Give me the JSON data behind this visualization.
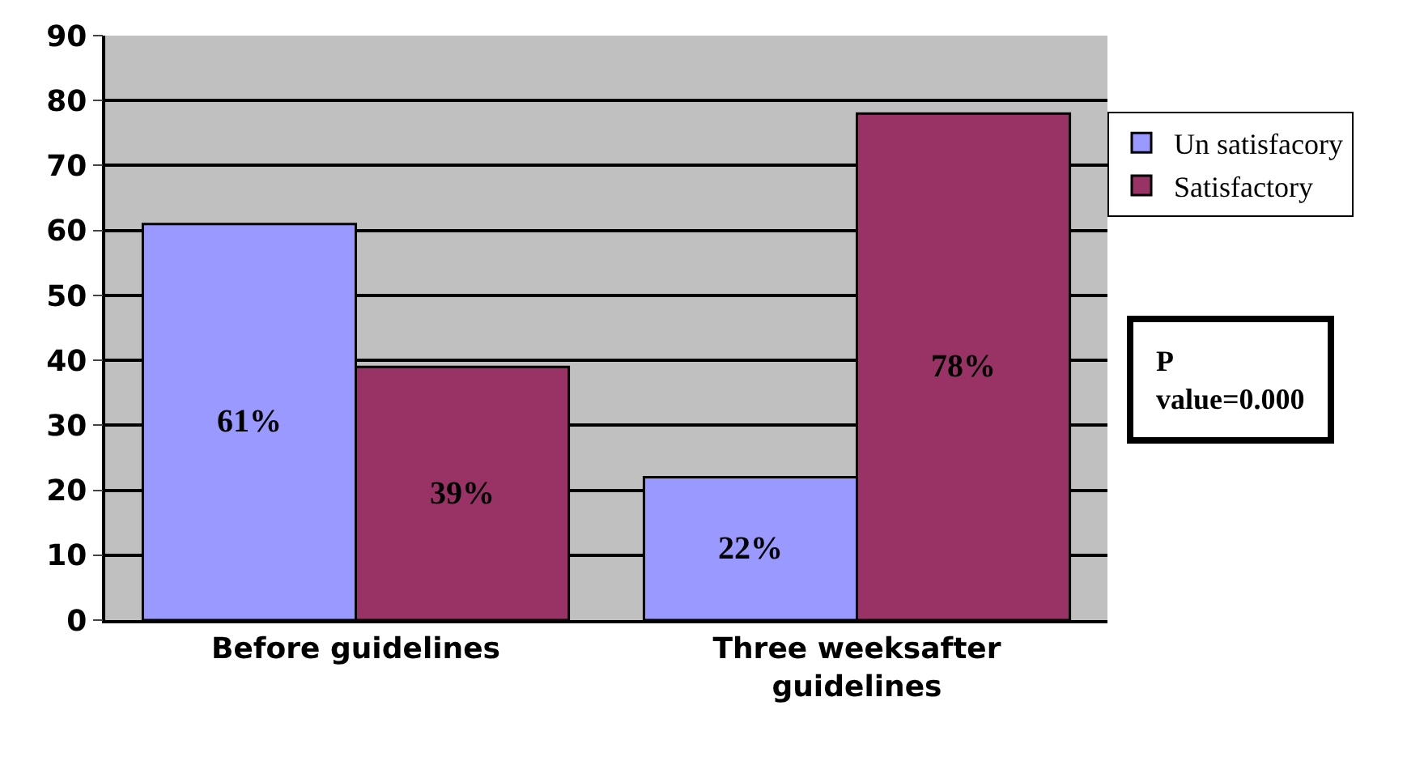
{
  "chart_data": {
    "type": "bar",
    "categories": [
      "Before guidelines",
      "Three weeksafter guidelines"
    ],
    "series": [
      {
        "name": "Un satisfacory",
        "color": "#9999ff",
        "values": [
          61,
          22
        ],
        "value_labels": [
          "61%",
          "22%"
        ]
      },
      {
        "name": "Satisfactory",
        "color": "#993366",
        "values": [
          39,
          78
        ],
        "value_labels": [
          "39%",
          "78%"
        ]
      }
    ],
    "ylim": [
      0,
      90
    ],
    "yticks": [
      0,
      10,
      20,
      30,
      40,
      50,
      60,
      70,
      80,
      90
    ],
    "grid": "y",
    "legend": "right",
    "annotations": [
      "P value=0.000"
    ]
  }
}
